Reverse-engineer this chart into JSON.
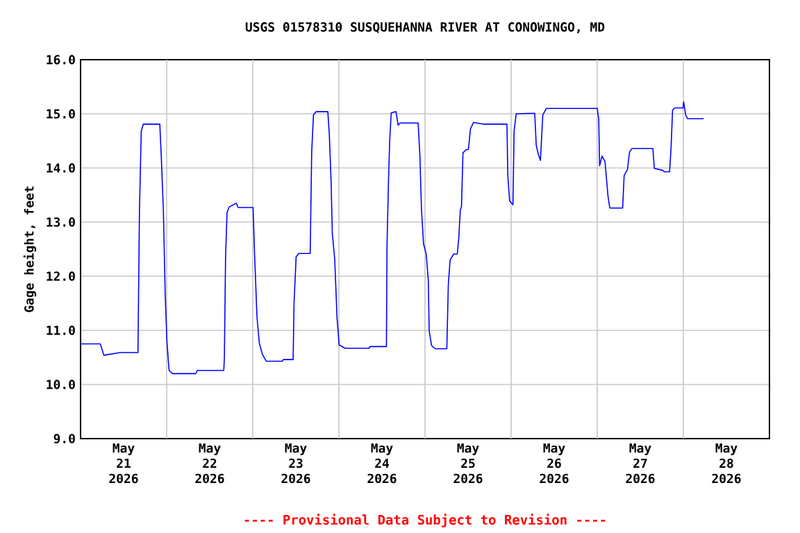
{
  "chart_data": {
    "type": "line",
    "title": "USGS 01578310 SUSQUEHANNA RIVER AT CONOWINGO, MD",
    "ylabel": "Gage height, feet",
    "annotations": [
      "---- Provisional Data Subject to Revision ----"
    ],
    "color": "#0000ff",
    "grid": true,
    "line_style": "solid",
    "xlim": [
      "2026-05-20T12:00",
      "2026-05-28T12:00"
    ],
    "ylim": [
      9,
      16
    ],
    "yticks": [
      {
        "value": 9,
        "label": "9.0"
      },
      {
        "value": 10,
        "label": "10.0"
      },
      {
        "value": 11,
        "label": "11.0"
      },
      {
        "value": 12,
        "label": "12.0"
      },
      {
        "value": 13,
        "label": "13.0"
      },
      {
        "value": 14,
        "label": "14.0"
      },
      {
        "value": 15,
        "label": "15.0"
      },
      {
        "value": 16,
        "label": "16.0"
      }
    ],
    "xticks": [
      {
        "value": "2026-05-21",
        "label": "May 21 2026"
      },
      {
        "value": "2026-05-21T12:00",
        "label": null
      },
      {
        "value": "2026-05-22",
        "label": "May 22 2026"
      },
      {
        "value": "2026-05-22T12:00",
        "label": null
      },
      {
        "value": "2026-05-23",
        "label": "May 23 2026"
      },
      {
        "value": "2026-05-23T12:00",
        "label": null
      },
      {
        "value": "2026-05-24",
        "label": "May 24 2026"
      },
      {
        "value": "2026-05-24T12:00",
        "label": null
      },
      {
        "value": "2026-05-25",
        "label": "May 25 2026"
      },
      {
        "value": "2026-05-25T12:00",
        "label": null
      },
      {
        "value": "2026-05-26",
        "label": "May 26 2026"
      },
      {
        "value": "2026-05-26T12:00",
        "label": null
      },
      {
        "value": "2026-05-27",
        "label": "May 27 2026"
      },
      {
        "value": "2026-05-27T12:00",
        "label": null
      },
      {
        "value": "2026-05-28",
        "label": "May 28 2026"
      }
    ],
    "x": [
      "2026-05-20T12:00",
      "2026-05-20T17:30",
      "2026-05-20T18:30",
      "2026-05-20T23:00",
      "2026-05-21T04:00",
      "2026-05-21T04:25",
      "2026-05-21T04:55",
      "2026-05-21T05:30",
      "2026-05-21T10:05",
      "2026-05-21T10:30",
      "2026-05-21T11:05",
      "2026-05-21T11:35",
      "2026-05-21T12:05",
      "2026-05-21T12:40",
      "2026-05-21T13:40",
      "2026-05-21T20:05",
      "2026-05-21T20:35",
      "2026-05-22T03:55",
      "2026-05-22T04:05",
      "2026-05-22T04:25",
      "2026-05-22T04:50",
      "2026-05-22T05:25",
      "2026-05-22T07:25",
      "2026-05-22T07:55",
      "2026-05-22T12:05",
      "2026-05-22T12:30",
      "2026-05-22T13:10",
      "2026-05-22T13:50",
      "2026-05-22T14:40",
      "2026-05-22T15:45",
      "2026-05-22T20:15",
      "2026-05-22T20:30",
      "2026-05-22T23:15",
      "2026-05-22T23:30",
      "2026-05-23T00:05",
      "2026-05-23T00:50",
      "2026-05-23T04:00",
      "2026-05-23T04:25",
      "2026-05-23T04:55",
      "2026-05-23T05:40",
      "2026-05-23T08:55",
      "2026-05-23T09:20",
      "2026-05-23T09:50",
      "2026-05-23T10:10",
      "2026-05-23T10:50",
      "2026-05-23T11:30",
      "2026-05-23T12:05",
      "2026-05-23T13:40",
      "2026-05-23T20:25",
      "2026-05-23T20:40",
      "2026-05-24T01:15",
      "2026-05-24T01:25",
      "2026-05-24T01:50",
      "2026-05-24T02:10",
      "2026-05-24T02:35",
      "2026-05-24T03:55",
      "2026-05-24T04:30",
      "2026-05-24T05:05",
      "2026-05-24T10:05",
      "2026-05-24T10:35",
      "2026-05-24T11:00",
      "2026-05-24T11:35",
      "2026-05-24T12:20",
      "2026-05-24T12:55",
      "2026-05-24T13:10",
      "2026-05-24T13:50",
      "2026-05-24T14:50",
      "2026-05-24T18:05",
      "2026-05-24T18:30",
      "2026-05-24T19:00",
      "2026-05-24T20:00",
      "2026-05-24T21:00",
      "2026-05-24T21:25",
      "2026-05-24T21:50",
      "2026-05-24T22:10",
      "2026-05-24T22:35",
      "2026-05-24T23:30",
      "2026-05-25T00:05",
      "2026-05-25T00:40",
      "2026-05-25T01:30",
      "2026-05-25T04:15",
      "2026-05-25T10:50",
      "2026-05-25T11:05",
      "2026-05-25T11:35",
      "2026-05-25T12:30",
      "2026-05-25T12:50",
      "2026-05-25T13:25",
      "2026-05-25T18:35",
      "2026-05-25T19:00",
      "2026-05-25T19:35",
      "2026-05-25T20:10",
      "2026-05-25T20:50",
      "2026-05-25T21:50",
      "2026-05-26T12:00",
      "2026-05-26T12:25",
      "2026-05-26T12:40",
      "2026-05-26T13:20",
      "2026-05-26T14:10",
      "2026-05-26T15:00",
      "2026-05-26T15:30",
      "2026-05-26T19:05",
      "2026-05-26T19:30",
      "2026-05-26T20:25",
      "2026-05-26T21:00",
      "2026-05-26T21:40",
      "2026-05-27T03:30",
      "2026-05-27T03:55",
      "2026-05-27T06:05",
      "2026-05-27T06:40",
      "2026-05-27T08:10",
      "2026-05-27T08:35",
      "2026-05-27T09:00",
      "2026-05-27T09:35",
      "2026-05-27T11:55",
      "2026-05-27T12:05",
      "2026-05-27T12:40",
      "2026-05-27T13:10",
      "2026-05-27T17:40"
    ],
    "values": [
      10.75,
      10.75,
      10.54,
      10.59,
      10.59,
      13.22,
      14.68,
      14.81,
      14.81,
      14.21,
      13.22,
      11.68,
      10.78,
      10.26,
      10.2,
      10.2,
      10.26,
      10.26,
      10.5,
      12.36,
      13.18,
      13.28,
      13.35,
      13.27,
      13.27,
      12.41,
      11.25,
      10.76,
      10.56,
      10.43,
      10.43,
      10.46,
      10.46,
      11.5,
      12.36,
      12.42,
      12.42,
      14.29,
      14.98,
      15.04,
      15.04,
      14.62,
      13.74,
      12.79,
      12.32,
      11.21,
      10.73,
      10.67,
      10.67,
      10.7,
      10.7,
      12.58,
      13.78,
      14.51,
      15.02,
      15.04,
      14.79,
      14.83,
      14.83,
      14.22,
      13.26,
      12.6,
      12.41,
      11.93,
      10.99,
      10.72,
      10.66,
      10.66,
      11.85,
      12.3,
      12.41,
      12.41,
      12.71,
      13.22,
      13.29,
      14.28,
      14.34,
      14.34,
      14.72,
      14.84,
      14.81,
      14.81,
      13.86,
      13.39,
      13.32,
      14.68,
      15.0,
      15.01,
      14.42,
      14.25,
      14.14,
      14.98,
      15.1,
      15.1,
      14.91,
      14.04,
      14.22,
      14.12,
      13.48,
      13.26,
      13.26,
      13.86,
      13.97,
      14.29,
      14.36,
      14.36,
      13.99,
      13.96,
      13.93,
      13.93,
      14.38,
      15.07,
      15.11,
      15.11,
      15.22,
      14.98,
      14.91,
      14.91
    ]
  }
}
